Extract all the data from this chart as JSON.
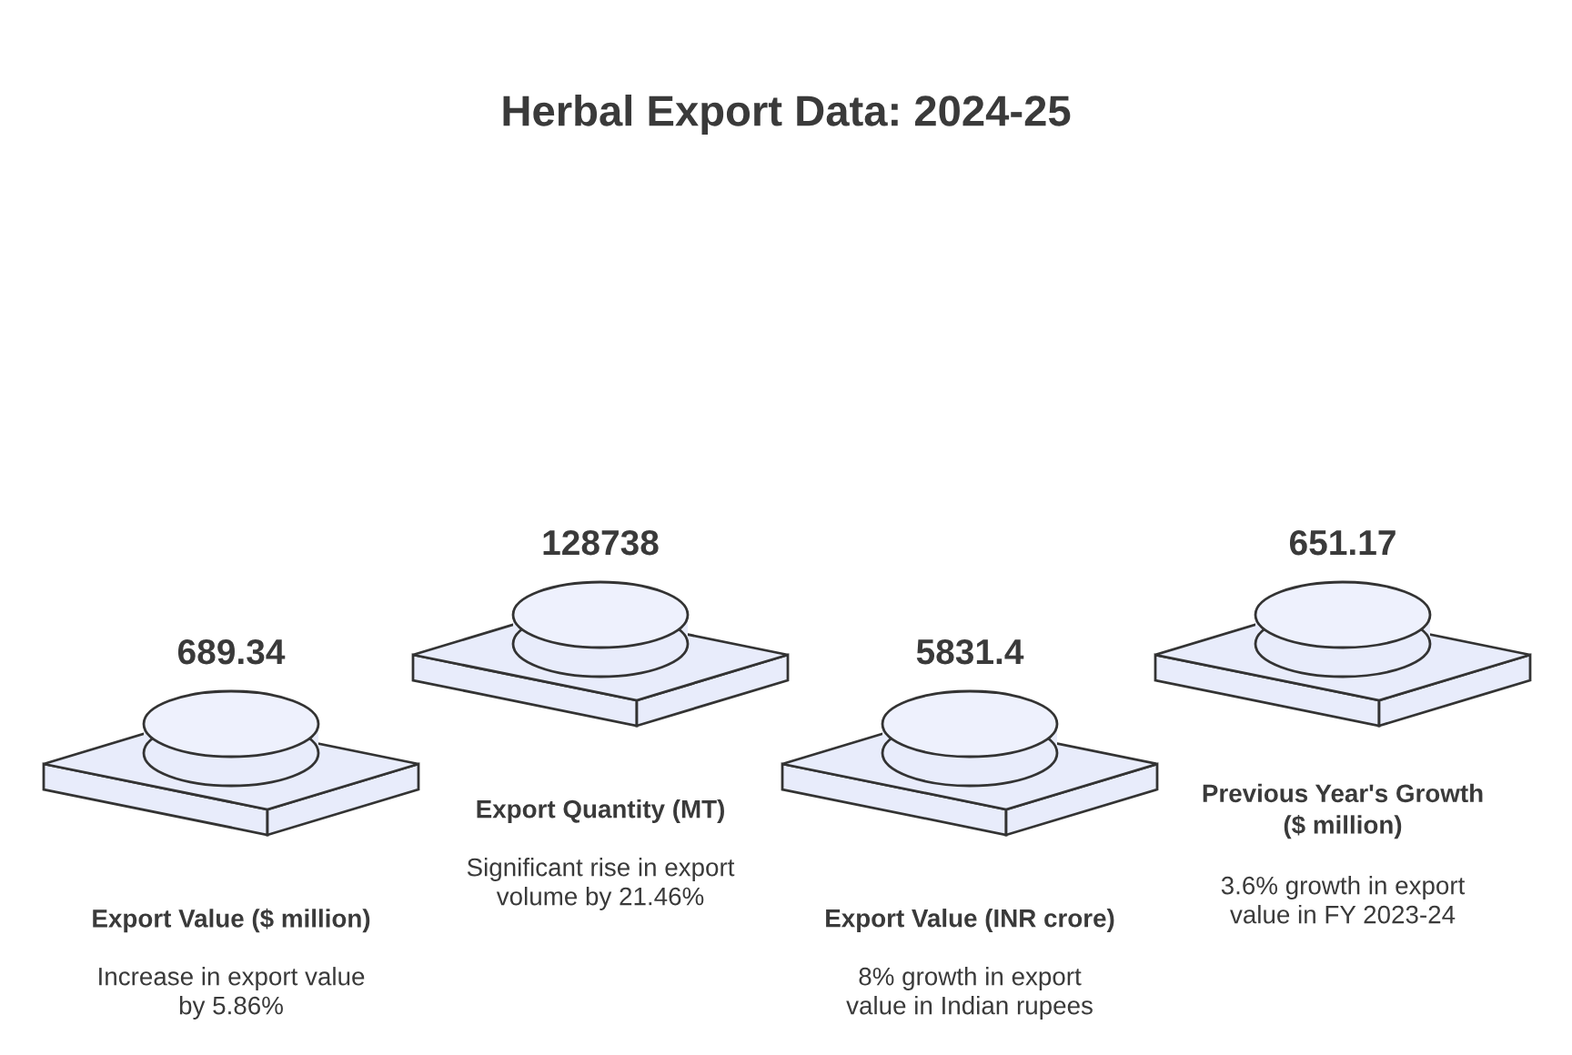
{
  "chart_data": {
    "type": "other",
    "title": "Herbal Export Data: 2024-25",
    "categories": [
      "Export Value ($ million)",
      "Export Quantity (MT)",
      "Export Value (INR crore)",
      "Previous Year's Growth\n($ million)"
    ],
    "values": [
      689.34,
      128738,
      5831.4,
      651.17
    ],
    "data_labels": true,
    "annotations": [
      "Increase in export value\nby 5.86%",
      "Significant rise in export\nvolume by 21.46%",
      "8% growth in export\nvalue in Indian rupees",
      "3.6% growth in export\nvalue in FY 2023-24"
    ]
  }
}
